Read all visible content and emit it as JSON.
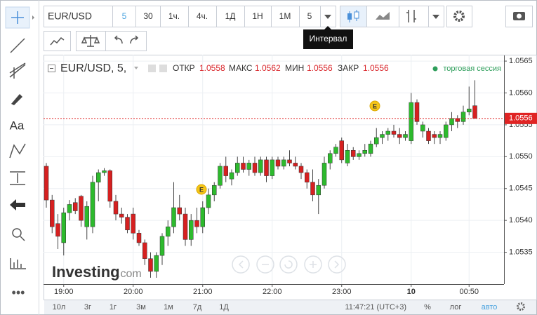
{
  "toolbar": {
    "symbol": "EUR/USD",
    "intervals": [
      "5",
      "30",
      "1ч.",
      "4ч.",
      "1Д",
      "1Н",
      "1М"
    ],
    "interval_select": "5",
    "tooltip": "Интервал"
  },
  "left_toolbar": {
    "text_tool": "Aa"
  },
  "logo": {
    "brand": "Investing",
    "suffix": ".com"
  },
  "bottom_bar": {
    "ranges": [
      "10л",
      "3г",
      "1г",
      "3м",
      "1м",
      "7д",
      "1Д"
    ],
    "clock": "11:47:21 (UTC+3)",
    "buttons": [
      "%",
      "лог",
      "авто"
    ]
  },
  "chart_data": {
    "type": "candlestick",
    "title": "EUR/USD, 5,",
    "session": "торговая сессия",
    "ohlc": [
      {
        "label": "ОТКР",
        "value": 1.0558
      },
      {
        "label": "МАКС",
        "value": 1.0562
      },
      {
        "label": "МИН",
        "value": 1.0556
      },
      {
        "label": "ЗАКР",
        "value": 1.0556
      }
    ],
    "categories": [
      null,
      null,
      null,
      "19:00",
      null,
      null,
      null,
      null,
      null,
      null,
      null,
      null,
      null,
      null,
      null,
      "20:00",
      null,
      null,
      null,
      null,
      null,
      null,
      null,
      null,
      null,
      null,
      null,
      "21:00",
      null,
      null,
      null,
      null,
      null,
      null,
      null,
      null,
      null,
      null,
      null,
      "22:00",
      null,
      null,
      null,
      null,
      null,
      null,
      null,
      null,
      null,
      null,
      null,
      "23:00",
      null,
      null,
      null,
      null,
      null,
      null,
      null,
      null,
      null,
      null,
      null,
      "10",
      null,
      null,
      null,
      null,
      null,
      null,
      null,
      null,
      null,
      "00:50",
      null
    ],
    "open": [
      1.05485,
      1.05432,
      1.05395,
      1.05365,
      1.05412,
      1.05428,
      1.05438,
      1.0539,
      1.0539,
      1.0546,
      1.05475,
      1.05478,
      1.0543,
      1.0541,
      1.05405,
      1.0541,
      1.0538,
      1.05365,
      1.0534,
      1.0532,
      1.05345,
      1.05375,
      1.0539,
      1.0542,
      1.0541,
      1.0537,
      1.054,
      1.0539,
      1.0542,
      1.0544,
      1.05455,
      1.05485,
      1.05465,
      1.05475,
      1.0549,
      1.0548,
      1.0549,
      1.05475,
      1.05495,
      1.0547,
      1.05495,
      1.05485,
      1.05495,
      1.0549,
      1.05485,
      1.05475,
      1.0546,
      1.0544,
      1.05455,
      1.0549,
      1.05505,
      1.05525,
      1.0549,
      1.0551,
      1.055,
      1.05505,
      1.05505,
      1.0552,
      1.0553,
      1.05535,
      1.0554,
      1.05535,
      1.0553,
      1.05525,
      1.05585,
      1.0554,
      1.0554,
      1.05535,
      1.0553,
      1.0553,
      1.0555,
      1.0556,
      1.05555,
      1.0557,
      1.0558
    ],
    "high": [
      1.0549,
      1.0544,
      1.0541,
      1.0542,
      1.05432,
      1.05435,
      1.0544,
      1.0543,
      1.0547,
      1.0548,
      1.05482,
      1.0548,
      1.0544,
      1.0542,
      1.0541,
      1.0542,
      1.05385,
      1.0537,
      1.0535,
      1.0535,
      1.0538,
      1.054,
      1.0546,
      1.0544,
      1.0542,
      1.0541,
      1.0542,
      1.0543,
      1.0545,
      1.0546,
      1.0549,
      1.055,
      1.0548,
      1.055,
      1.055,
      1.05495,
      1.055,
      1.055,
      1.055,
      1.055,
      1.055,
      1.055,
      1.0551,
      1.055,
      1.0549,
      1.0548,
      1.0548,
      1.05465,
      1.055,
      1.0551,
      1.0552,
      1.0553,
      1.0552,
      1.05515,
      1.0551,
      1.0552,
      1.05525,
      1.05545,
      1.0554,
      1.05545,
      1.0555,
      1.05545,
      1.0554,
      1.056,
      1.0559,
      1.05555,
      1.05545,
      1.0554,
      1.0554,
      1.05555,
      1.0557,
      1.05565,
      1.0558,
      1.0561,
      1.0562
    ],
    "low": [
      1.0542,
      1.0538,
      1.05355,
      1.05345,
      1.054,
      1.0541,
      1.0539,
      1.0537,
      1.0538,
      1.0543,
      1.0547,
      1.0542,
      1.054,
      1.05395,
      1.0538,
      1.0537,
      1.0536,
      1.0533,
      1.0531,
      1.0531,
      1.0533,
      1.0536,
      1.0538,
      1.054,
      1.0536,
      1.0536,
      1.0538,
      1.0538,
      1.0541,
      1.0543,
      1.0545,
      1.0546,
      1.05455,
      1.0547,
      1.05475,
      1.0547,
      1.0547,
      1.0547,
      1.0546,
      1.05465,
      1.0548,
      1.0548,
      1.05485,
      1.0548,
      1.05465,
      1.0545,
      1.0543,
      1.0541,
      1.0545,
      1.0548,
      1.055,
      1.0549,
      1.05485,
      1.05495,
      1.05495,
      1.055,
      1.055,
      1.05515,
      1.0552,
      1.05525,
      1.0553,
      1.0552,
      1.05525,
      1.0552,
      1.0555,
      1.0553,
      1.0552,
      1.0552,
      1.0552,
      1.05525,
      1.0554,
      1.05545,
      1.0555,
      1.05565,
      1.0556
    ],
    "close": [
      1.05432,
      1.0539,
      1.05375,
      1.05412,
      1.05425,
      1.05415,
      1.054,
      1.05422,
      1.0546,
      1.05475,
      1.05478,
      1.0543,
      1.0541,
      1.05405,
      1.05385,
      1.0538,
      1.05365,
      1.0534,
      1.0532,
      1.05345,
      1.05375,
      1.0539,
      1.0542,
      1.0541,
      1.0537,
      1.054,
      1.0539,
      1.0542,
      1.0544,
      1.05455,
      1.05485,
      1.0547,
      1.05475,
      1.0549,
      1.0548,
      1.0549,
      1.05475,
      1.05495,
      1.0547,
      1.05495,
      1.05485,
      1.05495,
      1.0549,
      1.05485,
      1.05475,
      1.0546,
      1.0544,
      1.05455,
      1.0549,
      1.05505,
      1.05515,
      1.05495,
      1.0551,
      1.055,
      1.05505,
      1.0551,
      1.0552,
      1.0553,
      1.05535,
      1.0554,
      1.05535,
      1.0553,
      1.05535,
      1.05585,
      1.05555,
      1.0555,
      1.05525,
      1.0553,
      1.05535,
      1.0555,
      1.0556,
      1.05555,
      1.0557,
      1.05575,
      1.0556
    ],
    "up_color": "#2dba2d",
    "down_color": "#d62020",
    "last_price": 1.0556,
    "last_price_color": "#e02424",
    "events": [
      {
        "label": "E"
      },
      {
        "label": "E"
      }
    ],
    "ylim": [
      1.053,
      1.0566
    ],
    "yticks": [
      1.0535,
      {
        "value": 1.054,
        "label": "1.0540"
      },
      1.0545,
      {
        "value": 1.055,
        "label": "1.0550"
      },
      1.0555,
      {
        "value": 1.056,
        "label": "1.0560"
      },
      1.0565
    ],
    "grid": true
  }
}
